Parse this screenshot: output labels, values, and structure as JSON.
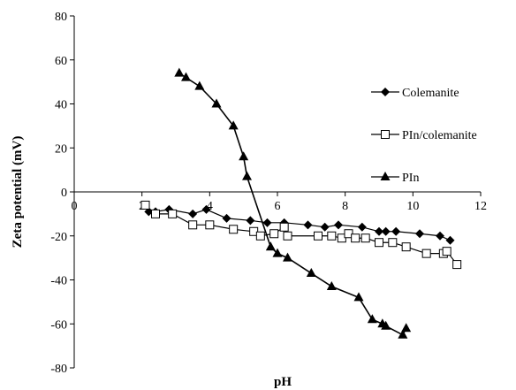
{
  "chart_data": {
    "type": "line",
    "xlabel": "pH",
    "ylabel": "Zeta potential (mV)",
    "xlim": [
      0,
      12
    ],
    "ylim": [
      -80,
      80
    ],
    "xticks": [
      0,
      2,
      4,
      6,
      8,
      10,
      12
    ],
    "yticks": [
      -80,
      -60,
      -40,
      -20,
      0,
      20,
      40,
      60,
      80
    ],
    "grid": false,
    "legend_position": "right",
    "series": [
      {
        "name": "Colemanite",
        "marker": "diamond",
        "points": [
          [
            2.2,
            -9
          ],
          [
            2.4,
            -9
          ],
          [
            2.8,
            -8
          ],
          [
            3.5,
            -10
          ],
          [
            3.9,
            -8
          ],
          [
            4.5,
            -12
          ],
          [
            5.2,
            -13
          ],
          [
            5.7,
            -14
          ],
          [
            6.2,
            -14
          ],
          [
            6.9,
            -15
          ],
          [
            7.4,
            -16
          ],
          [
            7.8,
            -15
          ],
          [
            8.5,
            -16
          ],
          [
            9.0,
            -18
          ],
          [
            9.2,
            -18
          ],
          [
            9.5,
            -18
          ],
          [
            10.2,
            -19
          ],
          [
            10.8,
            -20
          ],
          [
            11.1,
            -22
          ]
        ]
      },
      {
        "name": "PIn/colemanite",
        "marker": "square-open",
        "points": [
          [
            2.1,
            -6
          ],
          [
            2.4,
            -10
          ],
          [
            2.9,
            -10
          ],
          [
            3.5,
            -15
          ],
          [
            4.0,
            -15
          ],
          [
            4.7,
            -17
          ],
          [
            5.3,
            -18
          ],
          [
            5.5,
            -20
          ],
          [
            5.9,
            -19
          ],
          [
            6.2,
            -16
          ],
          [
            6.3,
            -20
          ],
          [
            7.2,
            -20
          ],
          [
            7.6,
            -20
          ],
          [
            7.9,
            -21
          ],
          [
            8.1,
            -19
          ],
          [
            8.3,
            -21
          ],
          [
            8.6,
            -21
          ],
          [
            9.0,
            -23
          ],
          [
            9.4,
            -23
          ],
          [
            9.8,
            -25
          ],
          [
            10.4,
            -28
          ],
          [
            10.9,
            -28
          ],
          [
            11.0,
            -27
          ],
          [
            11.3,
            -33
          ]
        ]
      },
      {
        "name": "PIn",
        "marker": "triangle",
        "points": [
          [
            3.1,
            54
          ],
          [
            3.3,
            52
          ],
          [
            3.7,
            48
          ],
          [
            4.2,
            40
          ],
          [
            4.7,
            30
          ],
          [
            5.0,
            16
          ],
          [
            5.1,
            7
          ],
          [
            5.8,
            -25
          ],
          [
            6.0,
            -28
          ],
          [
            6.3,
            -30
          ],
          [
            7.0,
            -37
          ],
          [
            7.6,
            -43
          ],
          [
            8.4,
            -48
          ],
          [
            8.8,
            -58
          ],
          [
            9.1,
            -60
          ],
          [
            9.2,
            -61
          ],
          [
            9.7,
            -65
          ],
          [
            9.8,
            -62
          ]
        ]
      }
    ]
  }
}
